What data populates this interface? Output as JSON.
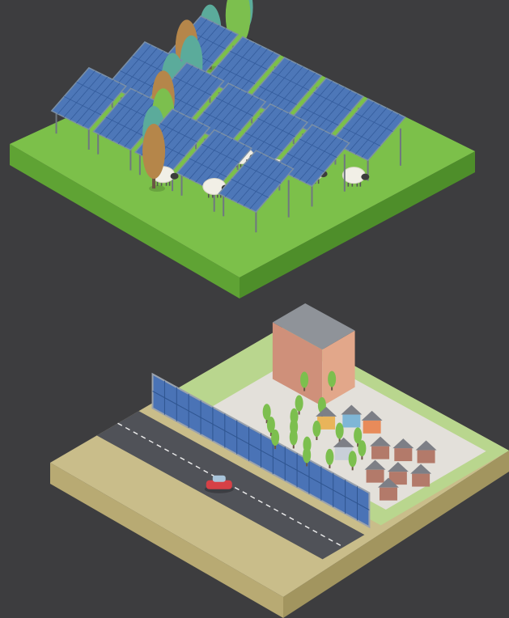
{
  "canvas": {
    "background": "#3d3d3f"
  },
  "palette": {
    "grass_top": "#7cc04a",
    "grass_left": "#5fa334",
    "grass_right": "#4e8e2a",
    "panel_frame": "#7a8fa6",
    "panel_cell": "#4d77b8",
    "panel_cell_dark": "#345c9c",
    "panel_leg": "#6f7780",
    "sheep_body": "#f1efe6",
    "sheep_head": "#3c3c3c",
    "tree_teal": "#5bab9b",
    "tree_green": "#7cbf4e",
    "tree_brown": "#b5864a",
    "trunk": "#6b5645",
    "sand_top": "#c9bd8a",
    "sand_left": "#b8aa73",
    "sand_right": "#a2955f",
    "road": "#505258",
    "road_line": "#f0f0f0",
    "noise_wall_panel": "#4a73b6",
    "noise_wall_frame": "#9aa2ad",
    "town_ground": "#e3e0da",
    "town_grass": "#b9d68e",
    "building_wall": "#e2a78a",
    "building_roof": "#8f9399",
    "house_brick": "#b37a6a",
    "house_roof": "#7d7f86",
    "car": "#d64046"
  },
  "scenes": [
    {
      "id": "agrivoltaic-field",
      "panel_rows": 3,
      "sheep_count": 6,
      "tree_count": 10
    },
    {
      "id": "highway-noise-barrier-solar",
      "noise_barrier_panels": 18,
      "house_count": 11,
      "tree_count": 18,
      "vehicle": "car"
    }
  ]
}
